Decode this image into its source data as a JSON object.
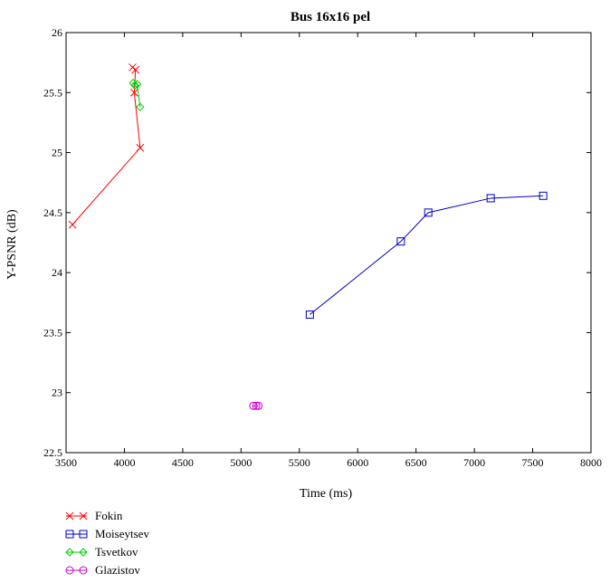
{
  "chart_data": {
    "type": "line",
    "title": "Bus 16x16 pel",
    "xlabel": "Time (ms)",
    "ylabel": "Y-PSNR (dB)",
    "xlim": [
      3500,
      8000
    ],
    "ylim": [
      22.5,
      26
    ],
    "xticks": [
      3500,
      4000,
      4500,
      5000,
      5500,
      6000,
      6500,
      7000,
      7500,
      8000
    ],
    "yticks": [
      22.5,
      23,
      23.5,
      24,
      24.5,
      25,
      25.5,
      26
    ],
    "xtick_labels": [
      "3500",
      "4000",
      "4500",
      "5000",
      "5500",
      "6000",
      "6500",
      "7000",
      "7500",
      "8000"
    ],
    "ytick_labels": [
      "22.5",
      "23",
      "23.5",
      "24",
      "24.5",
      "25",
      "25.5",
      "26"
    ],
    "grid": false,
    "legend_position": "bottom-left, below plot",
    "series": [
      {
        "name": "Fokin",
        "color": "#ff0000",
        "marker": "x",
        "points": [
          [
            3555,
            24.4
          ],
          [
            4135,
            25.04
          ],
          [
            4085,
            25.5
          ],
          [
            4095,
            25.69
          ],
          [
            4070,
            25.71
          ]
        ]
      },
      {
        "name": "Moiseytsev",
        "color": "#0000cc",
        "marker": "square",
        "points": [
          [
            5590,
            23.65
          ],
          [
            6370,
            24.26
          ],
          [
            6605,
            24.5
          ],
          [
            7140,
            24.62
          ],
          [
            7590,
            24.64
          ]
        ]
      },
      {
        "name": "Tsvetkov",
        "color": "#00cc00",
        "marker": "diamond",
        "points": [
          [
            4135,
            25.38
          ],
          [
            4110,
            25.57
          ],
          [
            4075,
            25.58
          ],
          [
            4090,
            25.56
          ]
        ]
      },
      {
        "name": "Glazistov",
        "color": "#cc00cc",
        "marker": "circle",
        "points": [
          [
            5105,
            22.89
          ],
          [
            5130,
            22.89
          ],
          [
            5150,
            22.89
          ]
        ]
      }
    ]
  }
}
